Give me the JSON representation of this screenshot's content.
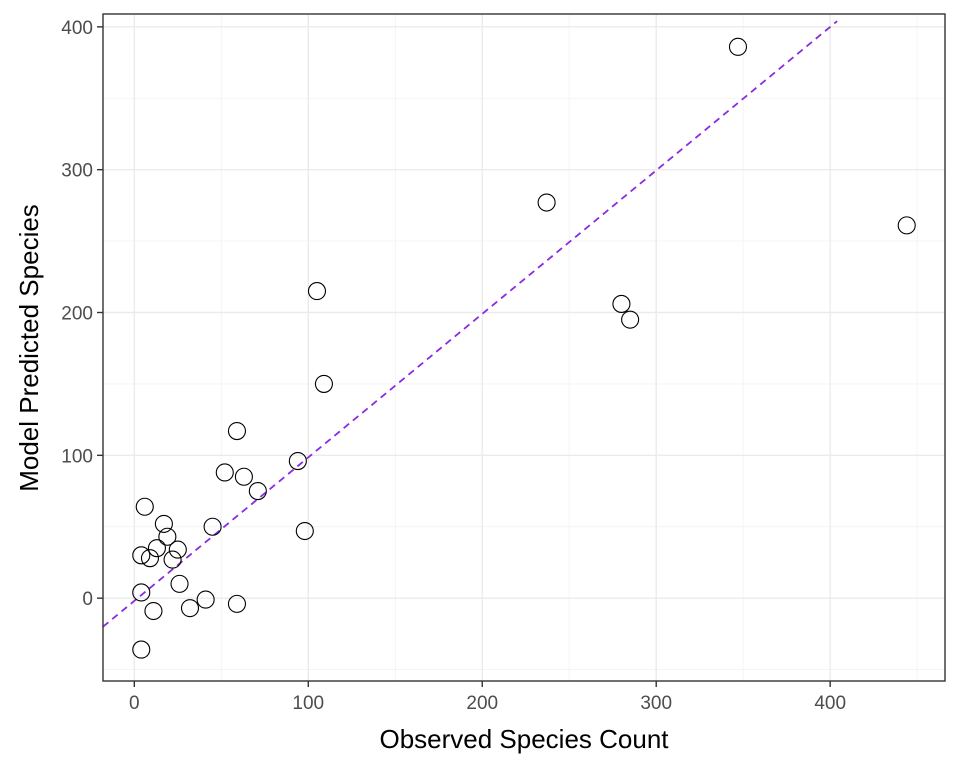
{
  "chart_data": {
    "type": "scatter",
    "title": "",
    "xlabel": "Observed Species Count",
    "ylabel": "Model Predicted Species",
    "xlim": [
      -18,
      466
    ],
    "ylim": [
      -58,
      409
    ],
    "x_ticks": [
      0,
      100,
      200,
      300,
      400
    ],
    "y_ticks": [
      0,
      100,
      200,
      300,
      400
    ],
    "x_tick_labels": [
      "0",
      "100",
      "200",
      "300",
      "400"
    ],
    "y_tick_labels": [
      "0",
      "100",
      "200",
      "300",
      "400"
    ],
    "grid": true,
    "legend": "none",
    "points": [
      {
        "x": 347,
        "y": 386
      },
      {
        "x": 237,
        "y": 277
      },
      {
        "x": 444,
        "y": 261
      },
      {
        "x": 280,
        "y": 206
      },
      {
        "x": 285,
        "y": 195
      },
      {
        "x": 105,
        "y": 215
      },
      {
        "x": 109,
        "y": 150
      },
      {
        "x": 59,
        "y": 117
      },
      {
        "x": 94,
        "y": 96
      },
      {
        "x": 52,
        "y": 88
      },
      {
        "x": 63,
        "y": 85
      },
      {
        "x": 71,
        "y": 75
      },
      {
        "x": 98,
        "y": 47
      },
      {
        "x": 45,
        "y": 50
      },
      {
        "x": 6,
        "y": 64
      },
      {
        "x": 17,
        "y": 52
      },
      {
        "x": 19,
        "y": 43
      },
      {
        "x": 13,
        "y": 35
      },
      {
        "x": 25,
        "y": 34
      },
      {
        "x": 22,
        "y": 27
      },
      {
        "x": 4,
        "y": 30
      },
      {
        "x": 9,
        "y": 28
      },
      {
        "x": 26,
        "y": 10
      },
      {
        "x": 4,
        "y": 4
      },
      {
        "x": 41,
        "y": -1
      },
      {
        "x": 59,
        "y": -4
      },
      {
        "x": 32,
        "y": -7
      },
      {
        "x": 11,
        "y": -9
      },
      {
        "x": 4,
        "y": -36
      }
    ],
    "reference_line": {
      "style": "dashed",
      "color": "#8a2be2",
      "x": [
        -18,
        404
      ],
      "y": [
        -20,
        404
      ]
    },
    "colors": {
      "points_stroke": "#000000",
      "line": "#8a2be2",
      "panel_border": "#333333",
      "grid": "#ebebeb"
    }
  }
}
